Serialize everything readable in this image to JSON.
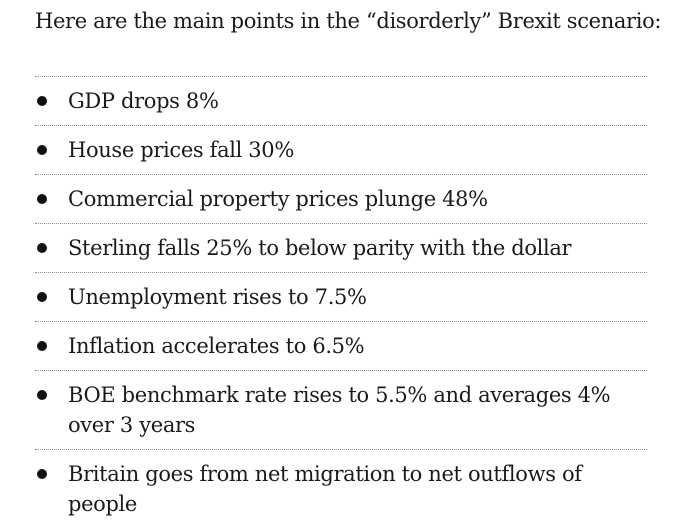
{
  "intro": "Here are the main points in the “disorderly” Brexit scenario:",
  "points": [
    "GDP drops 8%",
    "House prices fall 30%",
    "Commercial property prices plunge 48%",
    "Sterling falls 25% to below parity with the dollar",
    "Unemployment rises to 7.5%",
    "Inflation accelerates to 6.5%",
    "BOE benchmark rate rises to 5.5% and averages 4% over 3 years",
    "Britain goes from net migration to net outflows of people"
  ]
}
